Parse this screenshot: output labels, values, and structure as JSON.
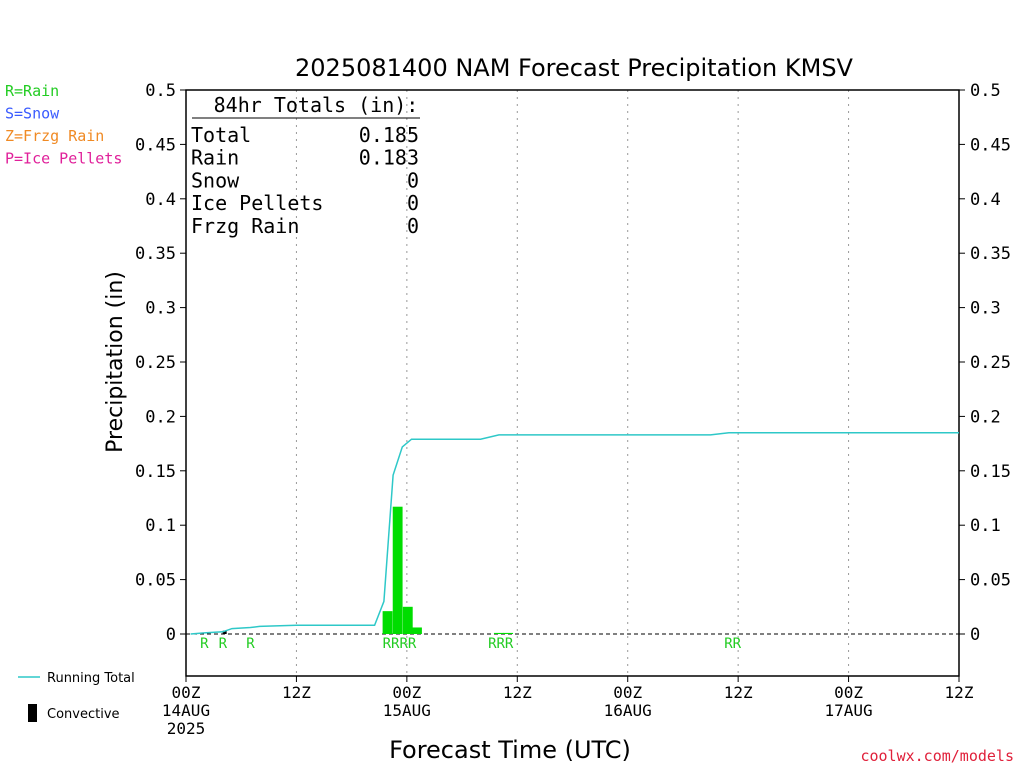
{
  "chart_data": {
    "type": "bar",
    "title": "2025081400 NAM Forecast Precipitation KMSV",
    "xlabel": "Forecast Time (UTC)",
    "ylabel": "Precipitation (in)",
    "ylim": [
      0,
      0.5
    ],
    "xlim_hours": [
      0,
      84
    ],
    "y_ticks": [
      "0",
      "0.05",
      "0.1",
      "0.15",
      "0.2",
      "0.25",
      "0.3",
      "0.35",
      "0.4",
      "0.45",
      "0.5"
    ],
    "x_ticks": [
      {
        "hour": 0,
        "lines": [
          "00Z",
          "14AUG",
          "2025"
        ]
      },
      {
        "hour": 12,
        "lines": [
          "12Z"
        ]
      },
      {
        "hour": 24,
        "lines": [
          "00Z",
          "15AUG"
        ]
      },
      {
        "hour": 36,
        "lines": [
          "12Z"
        ]
      },
      {
        "hour": 48,
        "lines": [
          "00Z",
          "16AUG"
        ]
      },
      {
        "hour": 60,
        "lines": [
          "12Z"
        ]
      },
      {
        "hour": 72,
        "lines": [
          "00Z",
          "17AUG"
        ]
      },
      {
        "hour": 84,
        "lines": [
          "12Z"
        ]
      }
    ],
    "grid": "vertical dotted at 12h intervals",
    "precip_bars": [
      {
        "hour": 21.9,
        "value": 0.021
      },
      {
        "hour": 23.0,
        "value": 0.117
      },
      {
        "hour": 24.1,
        "value": 0.025
      },
      {
        "hour": 25.1,
        "value": 0.006
      },
      {
        "hour": 34.0,
        "value": 0.001
      },
      {
        "hour": 35.0,
        "value": 0.001
      }
    ],
    "convective_bars": [
      {
        "hour": 4.2,
        "value": 0.003
      }
    ],
    "running_total": {
      "name": "Running Total",
      "points": [
        [
          0.5,
          0.0
        ],
        [
          2,
          0.001
        ],
        [
          4,
          0.002
        ],
        [
          5,
          0.005
        ],
        [
          7,
          0.006
        ],
        [
          8,
          0.007
        ],
        [
          12,
          0.008
        ],
        [
          20.5,
          0.008
        ],
        [
          21.5,
          0.03
        ],
        [
          22.5,
          0.146
        ],
        [
          23.5,
          0.172
        ],
        [
          24.5,
          0.179
        ],
        [
          30,
          0.179
        ],
        [
          32,
          0.179
        ],
        [
          34,
          0.183
        ],
        [
          57,
          0.183
        ],
        [
          59,
          0.185
        ],
        [
          84,
          0.185
        ]
      ]
    },
    "ptype_markers": [
      {
        "hour": 2.0,
        "label": "R"
      },
      {
        "hour": 4.0,
        "label": "R"
      },
      {
        "hour": 7.0,
        "label": "R"
      },
      {
        "hour": 23.2,
        "label": "RRRR"
      },
      {
        "hour": 34.2,
        "label": "RRR"
      },
      {
        "hour": 59.4,
        "label": "RR"
      }
    ],
    "totals_box": {
      "heading": "84hr Totals (in):",
      "rows": [
        {
          "label": "Total",
          "value": "0.185"
        },
        {
          "label": "Rain",
          "value": "0.183"
        },
        {
          "label": "Snow",
          "value": "0"
        },
        {
          "label": "Ice Pellets",
          "value": "0"
        },
        {
          "label": "Frzg Rain",
          "value": "0"
        }
      ]
    },
    "ptype_legend": [
      {
        "label": "R=Rain",
        "color": "#22cc22"
      },
      {
        "label": "S=Snow",
        "color": "#3a5bff"
      },
      {
        "label": "Z=Frzg Rain",
        "color": "#f08a24"
      },
      {
        "label": "P=Ice Pellets",
        "color": "#e0209a"
      }
    ],
    "bottom_legend": [
      {
        "label": "Running Total",
        "symbol": "line",
        "color": "#2ec8c8"
      },
      {
        "label": "Convective",
        "symbol": "bar",
        "color": "#000000"
      }
    ],
    "credit": "coolwx.com/models",
    "colors": {
      "bar": "#00dd00",
      "convective": "#000000",
      "running_total": "#2ec8c8",
      "rain_marker": "#22cc22",
      "credit": "#e0203a"
    }
  }
}
